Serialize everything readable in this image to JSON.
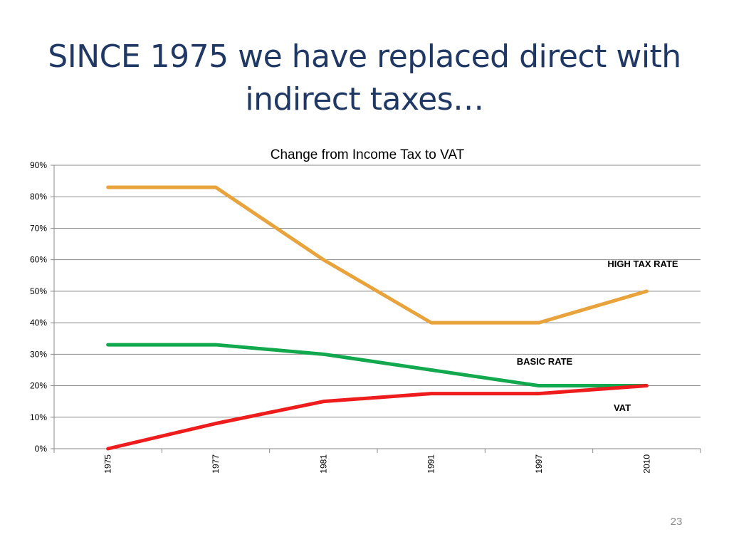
{
  "slide": {
    "title_line1": "SINCE 1975 we have replaced direct with",
    "title_line2": "indirect taxes…",
    "page_number": "23"
  },
  "chart_data": {
    "type": "line",
    "title": "Change from Income Tax to VAT",
    "xlabel": "",
    "ylabel": "",
    "categories": [
      "1975",
      "1977",
      "1981",
      "1991",
      "1997",
      "2010"
    ],
    "ylim": [
      0,
      0.9
    ],
    "yticks": [
      "0%",
      "10%",
      "20%",
      "30%",
      "40%",
      "50%",
      "60%",
      "70%",
      "80%",
      "90%"
    ],
    "grid": true,
    "series": [
      {
        "name": "HIGH TAX RATE",
        "color": "#e8a33c",
        "values": [
          0.83,
          0.83,
          0.6,
          0.4,
          0.4,
          0.5
        ]
      },
      {
        "name": "BASIC RATE",
        "color": "#12a84d",
        "values": [
          0.33,
          0.33,
          0.3,
          0.25,
          0.2,
          0.2
        ]
      },
      {
        "name": "VAT",
        "color": "#ee1c1c",
        "values": [
          0.0,
          0.08,
          0.15,
          0.175,
          0.175,
          0.2
        ]
      }
    ]
  }
}
